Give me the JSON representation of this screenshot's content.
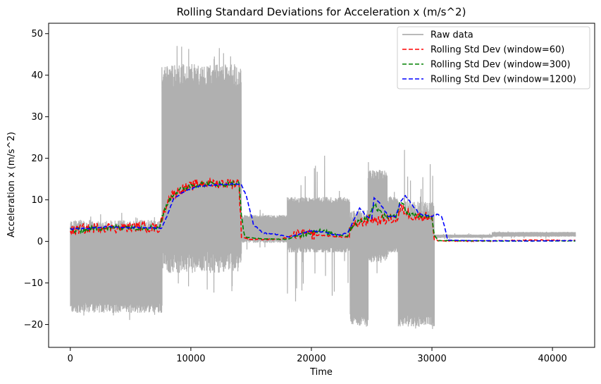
{
  "chart_data": {
    "type": "line",
    "title": "Rolling Standard Deviations for Acceleration x (m/s^2)",
    "xlabel": "Time",
    "ylabel": "Acceleration x (m/s^2)",
    "xlim": [
      -1800,
      43500
    ],
    "ylim": [
      -25.5,
      52.5
    ],
    "xticks": [
      0,
      10000,
      20000,
      30000,
      40000
    ],
    "xtick_labels": [
      "0",
      "10000",
      "20000",
      "30000",
      "40000"
    ],
    "yticks": [
      -20,
      -10,
      0,
      10,
      20,
      30,
      40,
      50
    ],
    "ytick_labels": [
      "−20",
      "−10",
      "0",
      "10",
      "20",
      "30",
      "40",
      "50"
    ],
    "grid": false,
    "legend_position": "top-right",
    "raw_envelope": {
      "name": "Raw data",
      "color": "#b0b0b0",
      "segments": [
        {
          "x0": 0,
          "x1": 7600,
          "lo": -16,
          "hi": 4,
          "lo_peak": -19,
          "hi_peak": 7
        },
        {
          "x0": 7600,
          "x1": 14200,
          "lo": -5,
          "hi": 40,
          "lo_peak": -13,
          "hi_peak": 49
        },
        {
          "x0": 14200,
          "x1": 18000,
          "lo": 0,
          "hi": 6,
          "lo_peak": -2,
          "hi_peak": 8
        },
        {
          "x0": 18000,
          "x1": 23200,
          "lo": -2,
          "hi": 10,
          "lo_peak": -15,
          "hi_peak": 23
        },
        {
          "x0": 23200,
          "x1": 24700,
          "lo": -19,
          "hi": 6,
          "lo_peak": -21,
          "hi_peak": 8
        },
        {
          "x0": 24700,
          "x1": 26300,
          "lo": -4,
          "hi": 16,
          "lo_peak": -8,
          "hi_peak": 22
        },
        {
          "x0": 26300,
          "x1": 27200,
          "lo": -2,
          "hi": 10,
          "lo_peak": -4,
          "hi_peak": 12
        },
        {
          "x0": 27200,
          "x1": 30200,
          "lo": -19,
          "hi": 8,
          "lo_peak": -22,
          "hi_peak": 24
        },
        {
          "x0": 30200,
          "x1": 35000,
          "lo": 0.9,
          "hi": 1.6,
          "lo_peak": 0.5,
          "hi_peak": 2
        },
        {
          "x0": 35000,
          "x1": 41900,
          "lo": 1.2,
          "hi": 2.2,
          "lo_peak": 0.6,
          "hi_peak": 2.6
        }
      ]
    },
    "series": [
      {
        "name": "Rolling Std Dev (window=60)",
        "color": "#ff0000",
        "noise": 1.2,
        "x": [
          0,
          300,
          900,
          1500,
          2500,
          4000,
          5500,
          7400,
          7700,
          8100,
          8600,
          9200,
          9800,
          10500,
          11500,
          12500,
          13500,
          14000,
          14200,
          15000,
          17500,
          18000,
          19000,
          20500,
          22000,
          23000,
          23300,
          23500,
          24000,
          24600,
          24900,
          25500,
          26500,
          27200,
          27400,
          28500,
          29500,
          30000,
          30200,
          31000,
          35000,
          38000,
          41900
        ],
        "y": [
          3,
          2.5,
          3.2,
          3,
          3.5,
          3.2,
          3.6,
          3.2,
          6.5,
          10,
          11.5,
          12.5,
          13,
          13.8,
          14,
          14,
          14,
          14.2,
          1,
          0.5,
          0.5,
          1,
          2,
          1.5,
          1.2,
          1,
          3,
          3.5,
          4.5,
          5,
          5.5,
          5,
          5.5,
          5.5,
          8,
          6,
          6,
          5.8,
          0.3,
          0.1,
          0.1,
          0.3,
          0.2
        ]
      },
      {
        "name": "Rolling Std Dev (window=300)",
        "color": "#008000",
        "noise": 0.6,
        "x": [
          0,
          300,
          1500,
          4000,
          7400,
          7700,
          8100,
          8600,
          9200,
          10000,
          11000,
          13000,
          14000,
          14200,
          14500,
          16000,
          18000,
          19000,
          20500,
          23000,
          23300,
          24000,
          24700,
          25200,
          26000,
          27000,
          27400,
          28000,
          30000,
          30200,
          30500,
          35000,
          41900
        ],
        "y": [
          3,
          2.5,
          3,
          3.4,
          3.3,
          6.5,
          9.5,
          11.5,
          12.5,
          13.5,
          13.8,
          13.8,
          14,
          6,
          1,
          0.6,
          0.5,
          1.5,
          2.5,
          1.2,
          3.5,
          5,
          5.5,
          9,
          6,
          5.8,
          10,
          6.5,
          6,
          1.5,
          0.2,
          0.1,
          0.1
        ]
      },
      {
        "name": "Rolling Std Dev (window=1200)",
        "color": "#0000ff",
        "noise": 0.15,
        "x": [
          0,
          1200,
          3000,
          6000,
          7600,
          8000,
          8600,
          9500,
          10500,
          12000,
          13500,
          14200,
          14600,
          15200,
          16000,
          17500,
          18200,
          19000,
          20000,
          21000,
          22000,
          23000,
          23500,
          24000,
          24600,
          25000,
          25200,
          25700,
          26400,
          27000,
          27400,
          27800,
          28300,
          29000,
          30000,
          30400,
          30800,
          31100,
          31300,
          33000,
          38000,
          41900
        ],
        "y": [
          3,
          3.1,
          3.5,
          3.3,
          3.2,
          6,
          10.5,
          12,
          13.2,
          13.6,
          13.8,
          13.5,
          11,
          4,
          2,
          1.5,
          1,
          1.8,
          2.5,
          2.3,
          1.5,
          2,
          5,
          8,
          6,
          5.5,
          10.5,
          9,
          6,
          6,
          9.5,
          11,
          9,
          6.5,
          6,
          6.5,
          6,
          3,
          0.3,
          0.2,
          0.1,
          0.2
        ]
      }
    ]
  }
}
